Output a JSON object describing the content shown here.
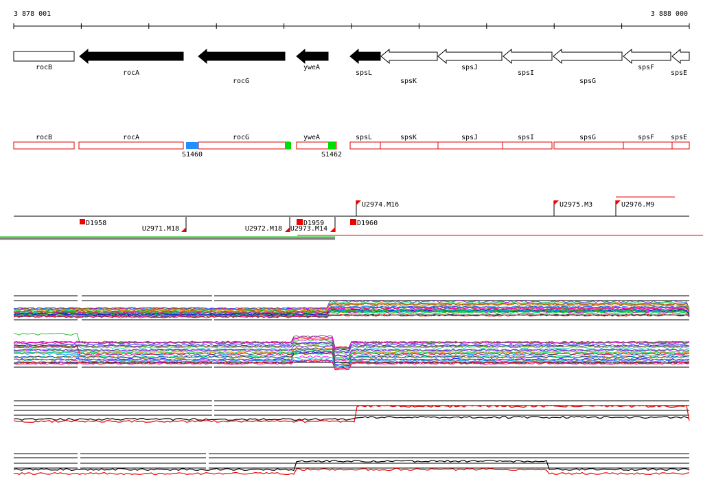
{
  "ruler": {
    "start_label": "3 878 001",
    "end_label": "3 888 000"
  },
  "genes": [
    {
      "name": "rocB",
      "strand": "+",
      "filled": false
    },
    {
      "name": "rocA",
      "strand": "-",
      "filled": true
    },
    {
      "name": "rocG",
      "strand": "-",
      "filled": true
    },
    {
      "name": "yweA",
      "strand": "-",
      "filled": true
    },
    {
      "name": "spsL",
      "strand": "-",
      "filled": true
    },
    {
      "name": "spsK",
      "strand": "-",
      "filled": false
    },
    {
      "name": "spsJ",
      "strand": "-",
      "filled": false
    },
    {
      "name": "spsI",
      "strand": "-",
      "filled": false
    },
    {
      "name": "spsG",
      "strand": "-",
      "filled": false
    },
    {
      "name": "spsF",
      "strand": "-",
      "filled": false
    },
    {
      "name": "spsE",
      "strand": "-",
      "filled": false
    }
  ],
  "operon_track": {
    "boxes": [
      "rocB",
      "rocA",
      "rocG",
      "yweA",
      "spsL",
      "spsK",
      "spsJ",
      "spsI",
      "spsG",
      "spsF",
      "spsE"
    ],
    "markers": [
      {
        "label": "S1460",
        "color": "#1e90ff"
      },
      {
        "label": "",
        "color": "#00dd00"
      },
      {
        "label": "S1462",
        "color": "#00dd00"
      }
    ]
  },
  "features": [
    {
      "label": "U2974.M16",
      "kind": "flag-up"
    },
    {
      "label": "U2975.M3",
      "kind": "flag-up"
    },
    {
      "label": "U2976.M9",
      "kind": "flag-up"
    },
    {
      "label": "D1958",
      "kind": "box-down"
    },
    {
      "label": "U2971.M18",
      "kind": "flag-down"
    },
    {
      "label": "U2972.M18",
      "kind": "flag-down"
    },
    {
      "label": "D1959",
      "kind": "box-down"
    },
    {
      "label": "U2973.M14",
      "kind": "flag-down"
    },
    {
      "label": "D1960",
      "kind": "box-down"
    }
  ],
  "colors": {
    "gene_outline": "#000000",
    "operon_box": "#dd0000",
    "feature_flag": "#ee0000",
    "line_red": "#ee0000",
    "line_black": "#000000"
  },
  "expression_panels": [
    {
      "name": "many-conditions",
      "series_count": 60
    },
    {
      "name": "two-conditions-a",
      "series": [
        "black",
        "red"
      ]
    },
    {
      "name": "two-conditions-b",
      "series": [
        "black",
        "red"
      ]
    }
  ]
}
